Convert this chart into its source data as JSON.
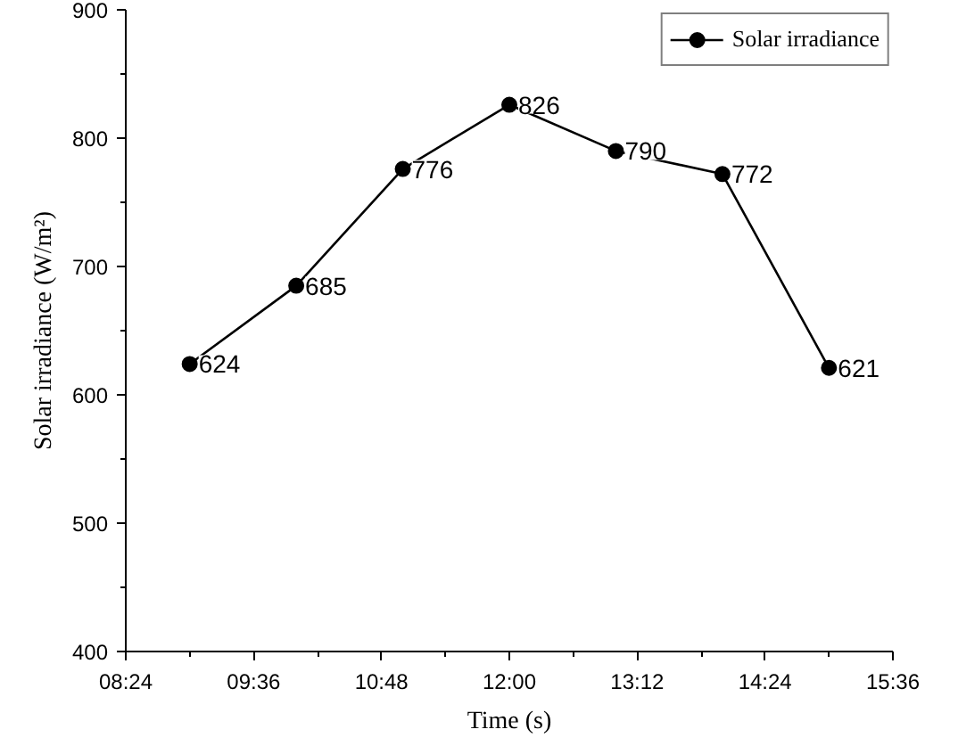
{
  "chart_data": {
    "type": "line",
    "xlabel": "Time (s)",
    "ylabel": "Solar irradiance (W/m²)",
    "x": [
      9,
      10,
      11,
      12,
      13,
      14,
      15
    ],
    "series": [
      {
        "name": "Solar irradiance",
        "color": "#000000",
        "values": [
          624,
          685,
          776,
          826,
          790,
          772,
          621
        ]
      }
    ],
    "xlim": [
      8.4,
      15.6
    ],
    "xticks": [
      {
        "value": 8.4,
        "label": "08:24"
      },
      {
        "value": 9.6,
        "label": "09:36"
      },
      {
        "value": 10.8,
        "label": "10:48"
      },
      {
        "value": 12,
        "label": "12:00"
      },
      {
        "value": 13.2,
        "label": "13:12"
      },
      {
        "value": 14.4,
        "label": "14:24"
      },
      {
        "value": 15.6,
        "label": "15:36"
      }
    ],
    "ylim": [
      400,
      900
    ],
    "yticks": [
      400,
      500,
      600,
      700,
      800,
      900
    ],
    "grid": false,
    "legend": "top right",
    "marker": "circle",
    "line_style": "solid",
    "data_labels": true
  }
}
